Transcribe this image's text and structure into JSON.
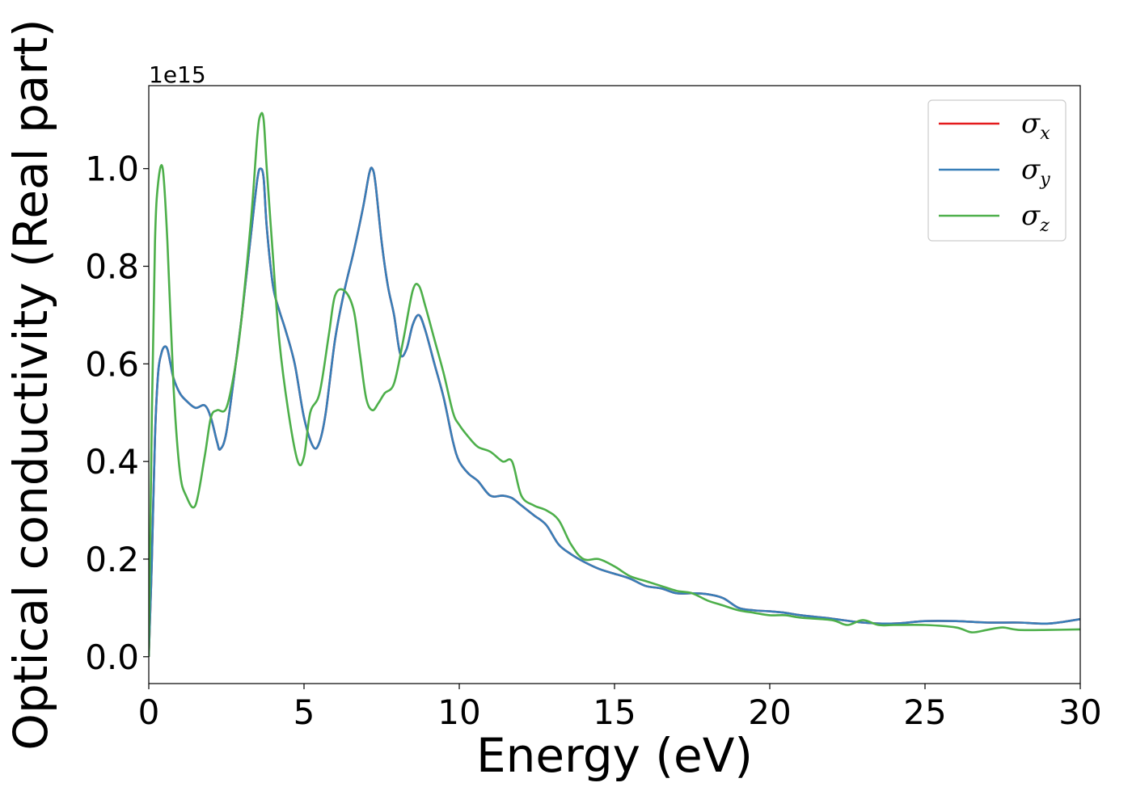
{
  "chart_data": {
    "type": "line",
    "xlabel": "Energy (eV)",
    "ylabel": "Optical conductivity (Real part)",
    "y_offset_text": "1e15",
    "xlim": [
      0,
      30
    ],
    "ylim": [
      -0.055,
      1.17
    ],
    "x_ticks": [
      0,
      5,
      10,
      15,
      20,
      25,
      30
    ],
    "x_tick_labels": [
      "0",
      "5",
      "10",
      "15",
      "20",
      "25",
      "30"
    ],
    "y_ticks": [
      0.0,
      0.2,
      0.4,
      0.6,
      0.8,
      1.0
    ],
    "y_tick_labels": [
      "0.0",
      "0.2",
      "0.4",
      "0.6",
      "0.8",
      "1.0"
    ],
    "grid": false,
    "legend_position": "top-right",
    "legend": [
      {
        "symbol": "σ",
        "sub": "x",
        "color": "#e41a1c"
      },
      {
        "symbol": "σ",
        "sub": "y",
        "color": "#377eb8"
      },
      {
        "symbol": "σ",
        "sub": "z",
        "color": "#4daf4a"
      }
    ],
    "series": [
      {
        "color": "#e41a1c",
        "x": [
          0,
          0.1,
          0.2,
          0.3,
          0.4,
          0.5,
          0.6,
          0.7,
          0.8,
          1.0,
          1.2,
          1.5,
          1.8,
          2.0,
          2.2,
          2.3,
          2.5,
          2.8,
          3.0,
          3.3,
          3.5,
          3.6,
          3.7,
          3.8,
          4.0,
          4.2,
          4.4,
          4.7,
          5.0,
          5.3,
          5.5,
          5.7,
          6.0,
          6.3,
          6.6,
          6.9,
          7.1,
          7.2,
          7.3,
          7.5,
          7.7,
          7.9,
          8.1,
          8.3,
          8.5,
          8.7,
          8.9,
          9.2,
          9.5,
          9.8,
          10.0,
          10.3,
          10.6,
          11.0,
          11.4,
          11.7,
          12.0,
          12.4,
          12.8,
          13.2,
          13.6,
          14.0,
          14.5,
          15.0,
          15.5,
          16.0,
          16.5,
          17.0,
          17.5,
          18.0,
          18.5,
          19.0,
          19.5,
          20.0,
          20.5,
          21.0,
          22.0,
          23.0,
          24.0,
          25.0,
          26.0,
          27.0,
          28.0,
          29.0,
          30.0
        ],
        "values": [
          0.0,
          0.2,
          0.45,
          0.58,
          0.62,
          0.635,
          0.63,
          0.6,
          0.57,
          0.54,
          0.525,
          0.51,
          0.515,
          0.49,
          0.44,
          0.425,
          0.46,
          0.6,
          0.7,
          0.87,
          0.98,
          1.0,
          0.98,
          0.88,
          0.76,
          0.71,
          0.67,
          0.6,
          0.49,
          0.43,
          0.44,
          0.5,
          0.65,
          0.75,
          0.83,
          0.92,
          0.99,
          1.0,
          0.97,
          0.85,
          0.76,
          0.7,
          0.62,
          0.63,
          0.68,
          0.7,
          0.67,
          0.6,
          0.53,
          0.44,
          0.4,
          0.375,
          0.36,
          0.33,
          0.33,
          0.325,
          0.31,
          0.29,
          0.27,
          0.23,
          0.21,
          0.195,
          0.18,
          0.17,
          0.16,
          0.145,
          0.14,
          0.13,
          0.13,
          0.128,
          0.12,
          0.1,
          0.095,
          0.093,
          0.09,
          0.085,
          0.078,
          0.07,
          0.068,
          0.073,
          0.073,
          0.07,
          0.07,
          0.068,
          0.077
        ]
      },
      {
        "color": "#377eb8",
        "x": [
          0,
          0.1,
          0.2,
          0.3,
          0.4,
          0.5,
          0.6,
          0.7,
          0.8,
          1.0,
          1.2,
          1.5,
          1.8,
          2.0,
          2.2,
          2.3,
          2.5,
          2.8,
          3.0,
          3.3,
          3.5,
          3.6,
          3.7,
          3.8,
          4.0,
          4.2,
          4.4,
          4.7,
          5.0,
          5.3,
          5.5,
          5.7,
          6.0,
          6.3,
          6.6,
          6.9,
          7.1,
          7.2,
          7.3,
          7.5,
          7.7,
          7.9,
          8.1,
          8.3,
          8.5,
          8.7,
          8.9,
          9.2,
          9.5,
          9.8,
          10.0,
          10.3,
          10.6,
          11.0,
          11.4,
          11.7,
          12.0,
          12.4,
          12.8,
          13.2,
          13.6,
          14.0,
          14.5,
          15.0,
          15.5,
          16.0,
          16.5,
          17.0,
          17.5,
          18.0,
          18.5,
          19.0,
          19.5,
          20.0,
          20.5,
          21.0,
          22.0,
          23.0,
          24.0,
          25.0,
          26.0,
          27.0,
          28.0,
          29.0,
          30.0
        ],
        "values": [
          0.0,
          0.2,
          0.45,
          0.58,
          0.62,
          0.635,
          0.63,
          0.6,
          0.57,
          0.54,
          0.525,
          0.51,
          0.515,
          0.49,
          0.44,
          0.425,
          0.46,
          0.6,
          0.7,
          0.87,
          0.98,
          1.0,
          0.98,
          0.88,
          0.76,
          0.71,
          0.67,
          0.6,
          0.49,
          0.43,
          0.44,
          0.5,
          0.65,
          0.75,
          0.83,
          0.92,
          0.99,
          1.0,
          0.97,
          0.85,
          0.76,
          0.7,
          0.62,
          0.63,
          0.68,
          0.7,
          0.67,
          0.6,
          0.53,
          0.44,
          0.4,
          0.375,
          0.36,
          0.33,
          0.33,
          0.325,
          0.31,
          0.29,
          0.27,
          0.23,
          0.21,
          0.195,
          0.18,
          0.17,
          0.16,
          0.145,
          0.14,
          0.13,
          0.13,
          0.128,
          0.12,
          0.1,
          0.095,
          0.093,
          0.09,
          0.085,
          0.078,
          0.07,
          0.068,
          0.073,
          0.073,
          0.07,
          0.07,
          0.068,
          0.077
        ]
      },
      {
        "color": "#4daf4a",
        "x": [
          0,
          0.1,
          0.2,
          0.3,
          0.45,
          0.6,
          0.8,
          1.0,
          1.2,
          1.5,
          1.8,
          2.0,
          2.2,
          2.5,
          2.8,
          3.0,
          3.3,
          3.5,
          3.6,
          3.7,
          3.8,
          4.0,
          4.2,
          4.5,
          4.8,
          5.0,
          5.2,
          5.5,
          5.8,
          6.0,
          6.3,
          6.6,
          6.8,
          7.0,
          7.2,
          7.4,
          7.6,
          7.9,
          8.2,
          8.5,
          8.7,
          8.9,
          9.2,
          9.5,
          9.8,
          10.0,
          10.3,
          10.6,
          11.0,
          11.4,
          11.7,
          12.0,
          12.4,
          12.8,
          13.2,
          13.6,
          14.0,
          14.5,
          15.0,
          15.5,
          16.0,
          16.5,
          17.0,
          17.5,
          18.0,
          18.5,
          19.0,
          19.5,
          20.0,
          20.5,
          21.0,
          22.0,
          22.5,
          23.0,
          23.5,
          24.0,
          25.0,
          26.0,
          26.5,
          27.0,
          27.5,
          28.0,
          29.0,
          30.0
        ],
        "values": [
          0.0,
          0.5,
          0.85,
          0.97,
          1.0,
          0.85,
          0.55,
          0.38,
          0.33,
          0.31,
          0.41,
          0.49,
          0.505,
          0.51,
          0.6,
          0.7,
          0.9,
          1.07,
          1.11,
          1.1,
          1.0,
          0.82,
          0.65,
          0.5,
          0.4,
          0.41,
          0.5,
          0.54,
          0.66,
          0.74,
          0.75,
          0.71,
          0.62,
          0.53,
          0.505,
          0.52,
          0.54,
          0.56,
          0.65,
          0.75,
          0.76,
          0.72,
          0.65,
          0.58,
          0.5,
          0.475,
          0.45,
          0.43,
          0.42,
          0.4,
          0.4,
          0.33,
          0.31,
          0.3,
          0.28,
          0.23,
          0.2,
          0.2,
          0.185,
          0.165,
          0.155,
          0.145,
          0.135,
          0.13,
          0.115,
          0.105,
          0.095,
          0.09,
          0.085,
          0.085,
          0.08,
          0.075,
          0.065,
          0.075,
          0.065,
          0.065,
          0.065,
          0.06,
          0.05,
          0.055,
          0.06,
          0.055,
          0.055,
          0.056
        ]
      }
    ]
  }
}
